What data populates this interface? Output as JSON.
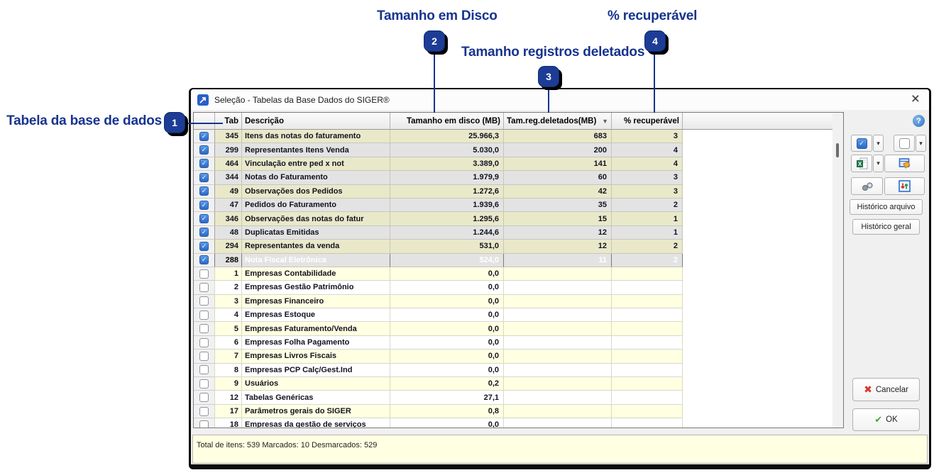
{
  "annotations": {
    "accent_color": "#17338e",
    "items": [
      {
        "num": "1",
        "label": "Tabela da base de dados"
      },
      {
        "num": "2",
        "label": "Tamanho em Disco"
      },
      {
        "num": "3",
        "label": "Tamanho registros deletados"
      },
      {
        "num": "4",
        "label": "% recuperável"
      }
    ]
  },
  "window": {
    "title": "Seleção - Tabelas da Base Dados do SIGER®",
    "close_glyph": "×"
  },
  "table": {
    "headers": {
      "tab": "Tab",
      "descricao": "Descrição",
      "disco": "Tamanho em disco (MB)",
      "deletados": "Tam.reg.deletados(MB)",
      "recuperavel": "% recuperável"
    },
    "sort_glyph": "▼",
    "rows": [
      {
        "checked": true,
        "selected": false,
        "tab": "345",
        "descricao": "Itens das notas do faturamento",
        "disco": "25.966,3",
        "deletados": "683",
        "recuperavel": "3"
      },
      {
        "checked": true,
        "selected": false,
        "tab": "299",
        "descricao": "Representantes Itens Venda",
        "disco": "5.030,0",
        "deletados": "200",
        "recuperavel": "4"
      },
      {
        "checked": true,
        "selected": false,
        "tab": "464",
        "descricao": "Vinculação entre ped x not",
        "disco": "3.389,0",
        "deletados": "141",
        "recuperavel": "4"
      },
      {
        "checked": true,
        "selected": false,
        "tab": "344",
        "descricao": "Notas do Faturamento",
        "disco": "1.979,9",
        "deletados": "60",
        "recuperavel": "3"
      },
      {
        "checked": true,
        "selected": false,
        "tab": "49",
        "descricao": "Observações dos Pedidos",
        "disco": "1.272,6",
        "deletados": "42",
        "recuperavel": "3"
      },
      {
        "checked": true,
        "selected": false,
        "tab": "47",
        "descricao": "Pedidos do Faturamento",
        "disco": "1.939,6",
        "deletados": "35",
        "recuperavel": "2"
      },
      {
        "checked": true,
        "selected": false,
        "tab": "346",
        "descricao": "Observações das notas do fatur",
        "disco": "1.295,6",
        "deletados": "15",
        "recuperavel": "1"
      },
      {
        "checked": true,
        "selected": false,
        "tab": "48",
        "descricao": "Duplicatas Emitidas",
        "disco": "1.244,6",
        "deletados": "12",
        "recuperavel": "1"
      },
      {
        "checked": true,
        "selected": false,
        "tab": "294",
        "descricao": "Representantes da venda",
        "disco": "531,0",
        "deletados": "12",
        "recuperavel": "2"
      },
      {
        "checked": true,
        "selected": true,
        "tab": "288",
        "descricao": "Nota Fiscal Eletrônica",
        "disco": "524,0",
        "deletados": "11",
        "recuperavel": "2"
      },
      {
        "checked": false,
        "selected": false,
        "tab": "1",
        "descricao": "Empresas Contabilidade",
        "disco": "0,0",
        "deletados": "",
        "recuperavel": ""
      },
      {
        "checked": false,
        "selected": false,
        "tab": "2",
        "descricao": "Empresas Gestão Patrimônio",
        "disco": "0,0",
        "deletados": "",
        "recuperavel": ""
      },
      {
        "checked": false,
        "selected": false,
        "tab": "3",
        "descricao": "Empresas Financeiro",
        "disco": "0,0",
        "deletados": "",
        "recuperavel": ""
      },
      {
        "checked": false,
        "selected": false,
        "tab": "4",
        "descricao": "Empresas Estoque",
        "disco": "0,0",
        "deletados": "",
        "recuperavel": ""
      },
      {
        "checked": false,
        "selected": false,
        "tab": "5",
        "descricao": "Empresas Faturamento/Venda",
        "disco": "0,0",
        "deletados": "",
        "recuperavel": ""
      },
      {
        "checked": false,
        "selected": false,
        "tab": "6",
        "descricao": "Empresas Folha Pagamento",
        "disco": "0,0",
        "deletados": "",
        "recuperavel": ""
      },
      {
        "checked": false,
        "selected": false,
        "tab": "7",
        "descricao": "Empresas Livros Fiscais",
        "disco": "0,0",
        "deletados": "",
        "recuperavel": ""
      },
      {
        "checked": false,
        "selected": false,
        "tab": "8",
        "descricao": "Empresas PCP Calç/Gest.Ind",
        "disco": "0,0",
        "deletados": "",
        "recuperavel": ""
      },
      {
        "checked": false,
        "selected": false,
        "tab": "9",
        "descricao": "Usuários",
        "disco": "0,2",
        "deletados": "",
        "recuperavel": ""
      },
      {
        "checked": false,
        "selected": false,
        "tab": "12",
        "descricao": "Tabelas Genéricas",
        "disco": "27,1",
        "deletados": "",
        "recuperavel": ""
      },
      {
        "checked": false,
        "selected": false,
        "tab": "17",
        "descricao": "Parâmetros gerais do SIGER",
        "disco": "0,8",
        "deletados": "",
        "recuperavel": ""
      },
      {
        "checked": false,
        "selected": false,
        "tab": "18",
        "descricao": "Empresas da gestão de serviços",
        "disco": "0,0",
        "deletados": "",
        "recuperavel": ""
      }
    ]
  },
  "side_panel": {
    "help_glyph": "?",
    "dropdown_glyph": "▾",
    "check_glyph": "✓",
    "historico_arquivo_label": "Histórico arquivo",
    "historico_geral_label": "Histórico geral",
    "cancel_label": "Cancelar",
    "cancel_glyph": "✖",
    "ok_label": "OK",
    "ok_glyph": "✔"
  },
  "status_bar": {
    "text": "Total de itens: 539 Marcados: 10 Desmarcados: 529"
  },
  "colors": {
    "annotation_blue": "#17338e",
    "selection_blue": "#2f8fe8",
    "selection_gray": "#8f8f8f",
    "checked_row_yellow": "#e9e9ca",
    "checked_row_gray": "#e3e3e3",
    "unchecked_row_yellow": "#ffffe2",
    "status_bar_bg": "#ffffe2"
  }
}
